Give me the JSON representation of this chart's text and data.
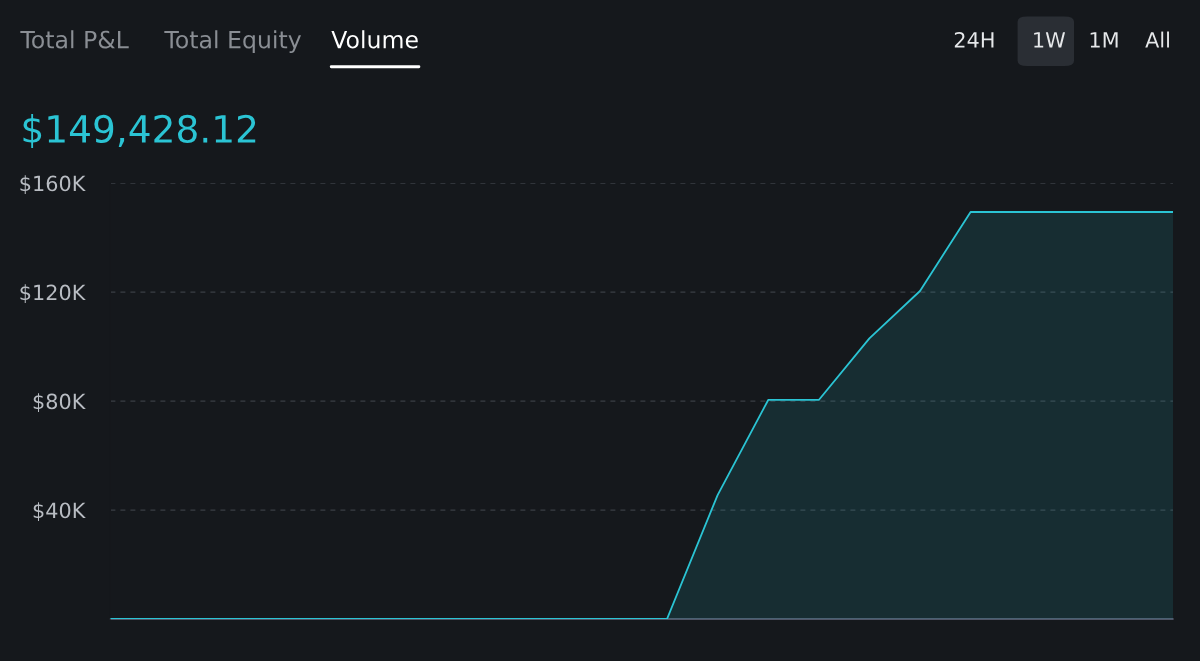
{
  "chart_data": {
    "type": "area",
    "title": "$149,428.12",
    "annotations": [
      "Total P&L",
      "Total Equity",
      "Volume",
      "24H",
      "1W",
      "1M",
      "All"
    ],
    "categories": [
      null,
      null,
      null,
      null,
      null,
      null,
      null,
      null,
      null,
      null,
      null,
      null,
      null,
      null,
      null,
      null,
      null,
      null,
      null,
      null,
      null,
      null
    ],
    "series": [
      {
        "color": "#2bc4d4",
        "values": [
          0,
          0,
          0,
          0,
          0,
          0,
          0,
          0,
          0,
          0,
          0,
          0,
          45500,
          80400,
          80400,
          103000,
          120400,
          149400,
          149400,
          149400,
          149400,
          149400
        ]
      }
    ],
    "ylim": [
      0,
      160000
    ],
    "yticks": [
      {
        "value": 40000,
        "label": "$40K"
      },
      {
        "value": 80000,
        "label": "$80K"
      },
      {
        "value": 120000,
        "label": "$120K"
      },
      {
        "value": 160000,
        "label": "$160K"
      }
    ],
    "grid": "y",
    "tick_labels": "y",
    "legend": false,
    "marker": "none",
    "line_style": "solid"
  }
}
